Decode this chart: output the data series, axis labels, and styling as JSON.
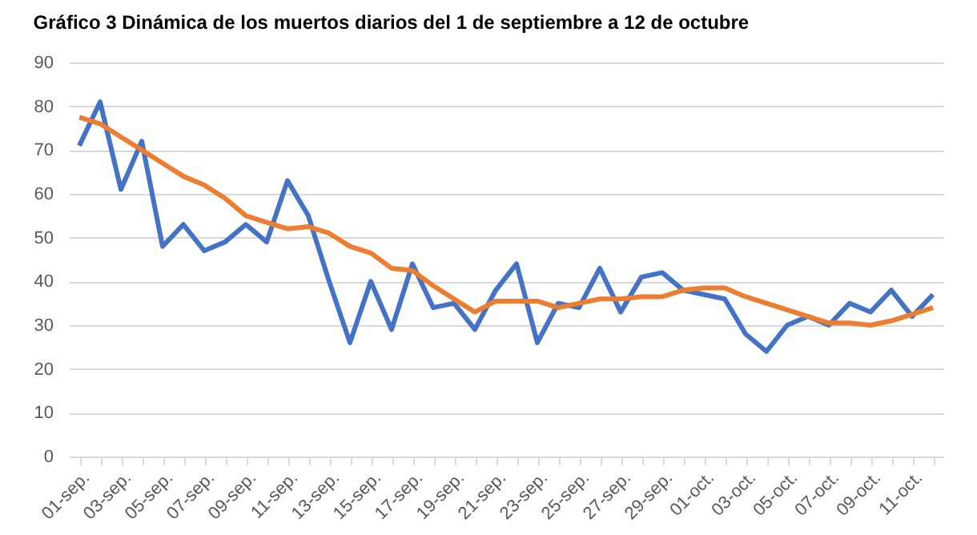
{
  "chart_data": {
    "type": "line",
    "title": "Gráfico 3 Dinámica de los muertos diarios del 1 de septiembre a 12 de octubre",
    "categories": [
      "01-sep.",
      null,
      "03-sep.",
      null,
      "05-sep.",
      null,
      "07-sep.",
      null,
      "09-sep.",
      null,
      "11-sep.",
      null,
      "13-sep.",
      null,
      "15-sep.",
      null,
      "17-sep.",
      null,
      "19-sep.",
      null,
      "21-sep.",
      null,
      "23-sep.",
      null,
      "25-sep.",
      null,
      "27-sep.",
      null,
      "29-sep.",
      null,
      "01-oct.",
      null,
      "03-oct.",
      null,
      "05-oct.",
      null,
      "07-oct.",
      null,
      "09-oct.",
      null,
      "11-oct.",
      null
    ],
    "series": [
      {
        "color": "#4472c4",
        "values": [
          71,
          81,
          61,
          72,
          48,
          53,
          47,
          49,
          53,
          49,
          63,
          55,
          40,
          26,
          40,
          29,
          44,
          34,
          35,
          29,
          38,
          44,
          26,
          35,
          34,
          43,
          33,
          41,
          42,
          38,
          37,
          36,
          28,
          24,
          30,
          32,
          30,
          35,
          33,
          38,
          32,
          37
        ]
      },
      {
        "color": "#ed7d31",
        "values": [
          77.5,
          76,
          73,
          70,
          67,
          64,
          62,
          59,
          55,
          53.5,
          52,
          52.5,
          51,
          48,
          46.5,
          43,
          42.5,
          39,
          36,
          33,
          35.5,
          35.5,
          35.5,
          34,
          35,
          36,
          36,
          36.5,
          36.5,
          38,
          38.5,
          38.5,
          36.5,
          35,
          33.5,
          32,
          30.5,
          30.5,
          30,
          31,
          32.5,
          34
        ]
      }
    ],
    "ylim": [
      0,
      90
    ],
    "yticks": [
      0,
      10,
      20,
      30,
      40,
      50,
      60,
      70,
      80,
      90
    ],
    "grid": "y",
    "marker": "none",
    "line_style": "solid"
  }
}
